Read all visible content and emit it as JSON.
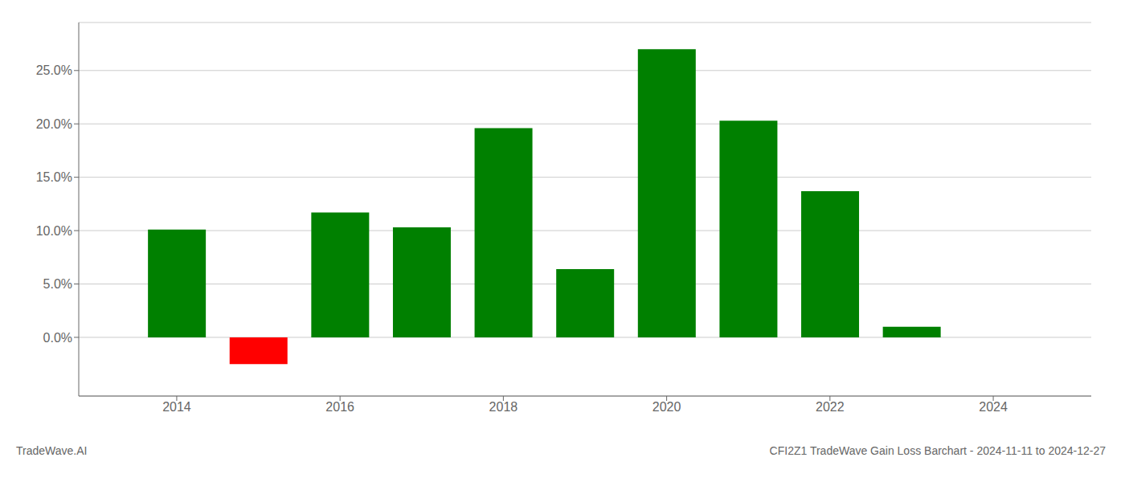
{
  "chart_data": {
    "type": "bar",
    "x": [
      2014,
      2015,
      2016,
      2017,
      2018,
      2019,
      2020,
      2021,
      2022,
      2023
    ],
    "values": [
      0.101,
      -0.025,
      0.117,
      0.103,
      0.196,
      0.064,
      0.27,
      0.203,
      0.137,
      0.01
    ],
    "colors": [
      "#008000",
      "#ff0000",
      "#008000",
      "#008000",
      "#008000",
      "#008000",
      "#008000",
      "#008000",
      "#008000",
      "#008000"
    ],
    "xlim": [
      2012.8,
      2025.2
    ],
    "ylim": [
      -0.055,
      0.295
    ],
    "xticks": [
      2014,
      2016,
      2018,
      2020,
      2022,
      2024
    ],
    "yticks": [
      {
        "value": 0.0,
        "label": "0.0%"
      },
      {
        "value": 0.05,
        "label": "5.0%"
      },
      {
        "value": 0.1,
        "label": "10.0%"
      },
      {
        "value": 0.15,
        "label": "15.0%"
      },
      {
        "value": 0.2,
        "label": "20.0%"
      },
      {
        "value": 0.25,
        "label": "25.0%"
      }
    ],
    "grid": true,
    "annotations": [
      "TradeWave.AI",
      "CFI2Z1 TradeWave Gain Loss Barchart - 2024-11-11 to 2024-12-27"
    ]
  }
}
